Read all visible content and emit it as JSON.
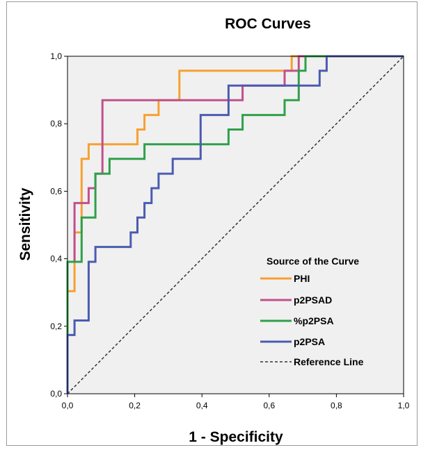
{
  "chart_data": {
    "type": "line",
    "title": "ROC Curves",
    "xlabel": "1 - Specificity",
    "ylabel": "Sensitivity",
    "xlim": [
      0,
      1
    ],
    "ylim": [
      0,
      1
    ],
    "x_ticks": [
      "0,0",
      "0,2",
      "0,4",
      "0,6",
      "0,8",
      "1,0"
    ],
    "y_ticks": [
      "0,0",
      "0,2",
      "0,4",
      "0,6",
      "0,8",
      "1,0"
    ],
    "x_tick_values": [
      0,
      0.2,
      0.4,
      0.6,
      0.8,
      1.0
    ],
    "y_tick_values": [
      0,
      0.2,
      0.4,
      0.6,
      0.8,
      1.0
    ],
    "grid": false,
    "plot_background": "#f0f0f0",
    "legend": {
      "title": "Source of the Curve",
      "placement": "bottom-right"
    },
    "series": [
      {
        "name": "PHI",
        "color": "#f7a030",
        "x": [
          0,
          0,
          0.021,
          0.021,
          0.042,
          0.042,
          0.063,
          0.063,
          0.208,
          0.208,
          0.229,
          0.229,
          0.271,
          0.271,
          0.333,
          0.333,
          0.667,
          0.667,
          0.688,
          0.688,
          1.0
        ],
        "y": [
          0,
          0.304,
          0.304,
          0.478,
          0.478,
          0.696,
          0.696,
          0.739,
          0.739,
          0.783,
          0.783,
          0.826,
          0.826,
          0.87,
          0.87,
          0.957,
          0.957,
          1.0,
          1.0,
          1.0,
          1.0
        ]
      },
      {
        "name": "p2PSAD",
        "color": "#c0508c",
        "x": [
          0,
          0,
          0.021,
          0.021,
          0.063,
          0.063,
          0.083,
          0.083,
          0.104,
          0.104,
          0.521,
          0.521,
          0.646,
          0.646,
          0.688,
          0.688,
          1.0
        ],
        "y": [
          0,
          0.391,
          0.391,
          0.565,
          0.565,
          0.609,
          0.609,
          0.652,
          0.652,
          0.87,
          0.87,
          0.913,
          0.913,
          0.957,
          0.957,
          1.0,
          1.0
        ]
      },
      {
        "name": "%p2PSA",
        "color": "#2ea04a",
        "x": [
          0,
          0,
          0.042,
          0.042,
          0.083,
          0.083,
          0.125,
          0.125,
          0.229,
          0.229,
          0.479,
          0.479,
          0.521,
          0.521,
          0.646,
          0.646,
          0.688,
          0.688,
          0.708,
          0.708,
          1.0
        ],
        "y": [
          0,
          0.391,
          0.391,
          0.522,
          0.522,
          0.652,
          0.652,
          0.696,
          0.696,
          0.739,
          0.739,
          0.783,
          0.783,
          0.826,
          0.826,
          0.87,
          0.87,
          0.957,
          0.957,
          1.0,
          1.0
        ]
      },
      {
        "name": "p2PSA",
        "color": "#4a5cb0",
        "x": [
          0,
          0,
          0.021,
          0.021,
          0.063,
          0.063,
          0.083,
          0.083,
          0.188,
          0.188,
          0.208,
          0.208,
          0.229,
          0.229,
          0.25,
          0.25,
          0.271,
          0.271,
          0.313,
          0.313,
          0.396,
          0.396,
          0.479,
          0.479,
          0.75,
          0.75,
          0.771,
          0.771,
          1.0
        ],
        "y": [
          0,
          0.174,
          0.174,
          0.217,
          0.217,
          0.391,
          0.391,
          0.435,
          0.435,
          0.478,
          0.478,
          0.522,
          0.522,
          0.565,
          0.565,
          0.609,
          0.609,
          0.652,
          0.652,
          0.696,
          0.696,
          0.826,
          0.826,
          0.913,
          0.913,
          0.957,
          0.957,
          1.0,
          1.0
        ]
      },
      {
        "name": "Reference Line",
        "color": "#333333",
        "dashed": true,
        "x": [
          0,
          1
        ],
        "y": [
          0,
          1
        ]
      }
    ]
  }
}
